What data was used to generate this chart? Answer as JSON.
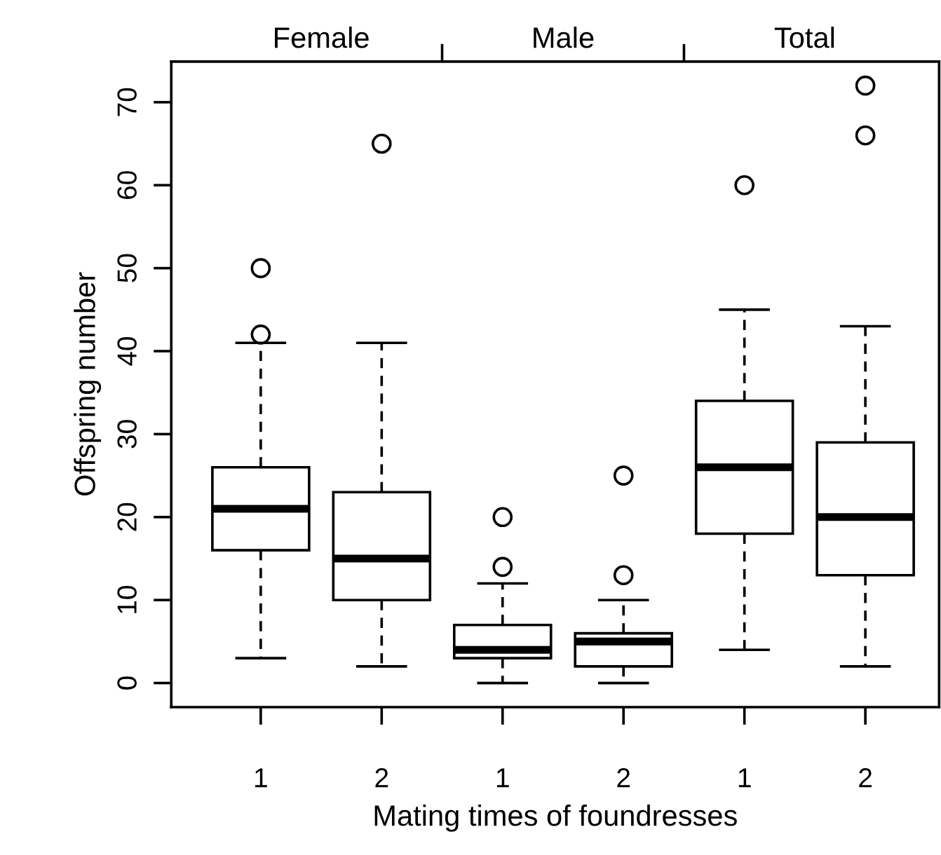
{
  "chart_data": {
    "type": "box",
    "xlabel": "Mating times of foundresses",
    "ylabel": "Offspring number",
    "categories": [
      "1",
      "2",
      "1",
      "2",
      "1",
      "2"
    ],
    "annotations": [
      "Female",
      "Male",
      "Total"
    ],
    "boxes": [
      {
        "low": 3,
        "q1": 16,
        "median": 21,
        "q3": 26,
        "high": 41,
        "outliers": [
          42,
          50
        ]
      },
      {
        "low": 2,
        "q1": 10,
        "median": 15,
        "q3": 23,
        "high": 41,
        "outliers": [
          65
        ]
      },
      {
        "low": 0,
        "q1": 3,
        "median": 4,
        "q3": 7,
        "high": 12,
        "outliers": [
          14,
          20
        ]
      },
      {
        "low": 0,
        "q1": 2,
        "median": 5,
        "q3": 6,
        "high": 10,
        "outliers": [
          13,
          25
        ]
      },
      {
        "low": 4,
        "q1": 18,
        "median": 26,
        "q3": 34,
        "high": 45,
        "outliers": [
          60
        ]
      },
      {
        "low": 2,
        "q1": 13,
        "median": 20,
        "q3": 29,
        "high": 43,
        "outliers": [
          66,
          72
        ]
      }
    ],
    "ylim": [
      -2.9,
      74.9
    ],
    "yticks": [
      0,
      10,
      20,
      30,
      40,
      50,
      60,
      70
    ],
    "grid": false,
    "legend": false
  }
}
